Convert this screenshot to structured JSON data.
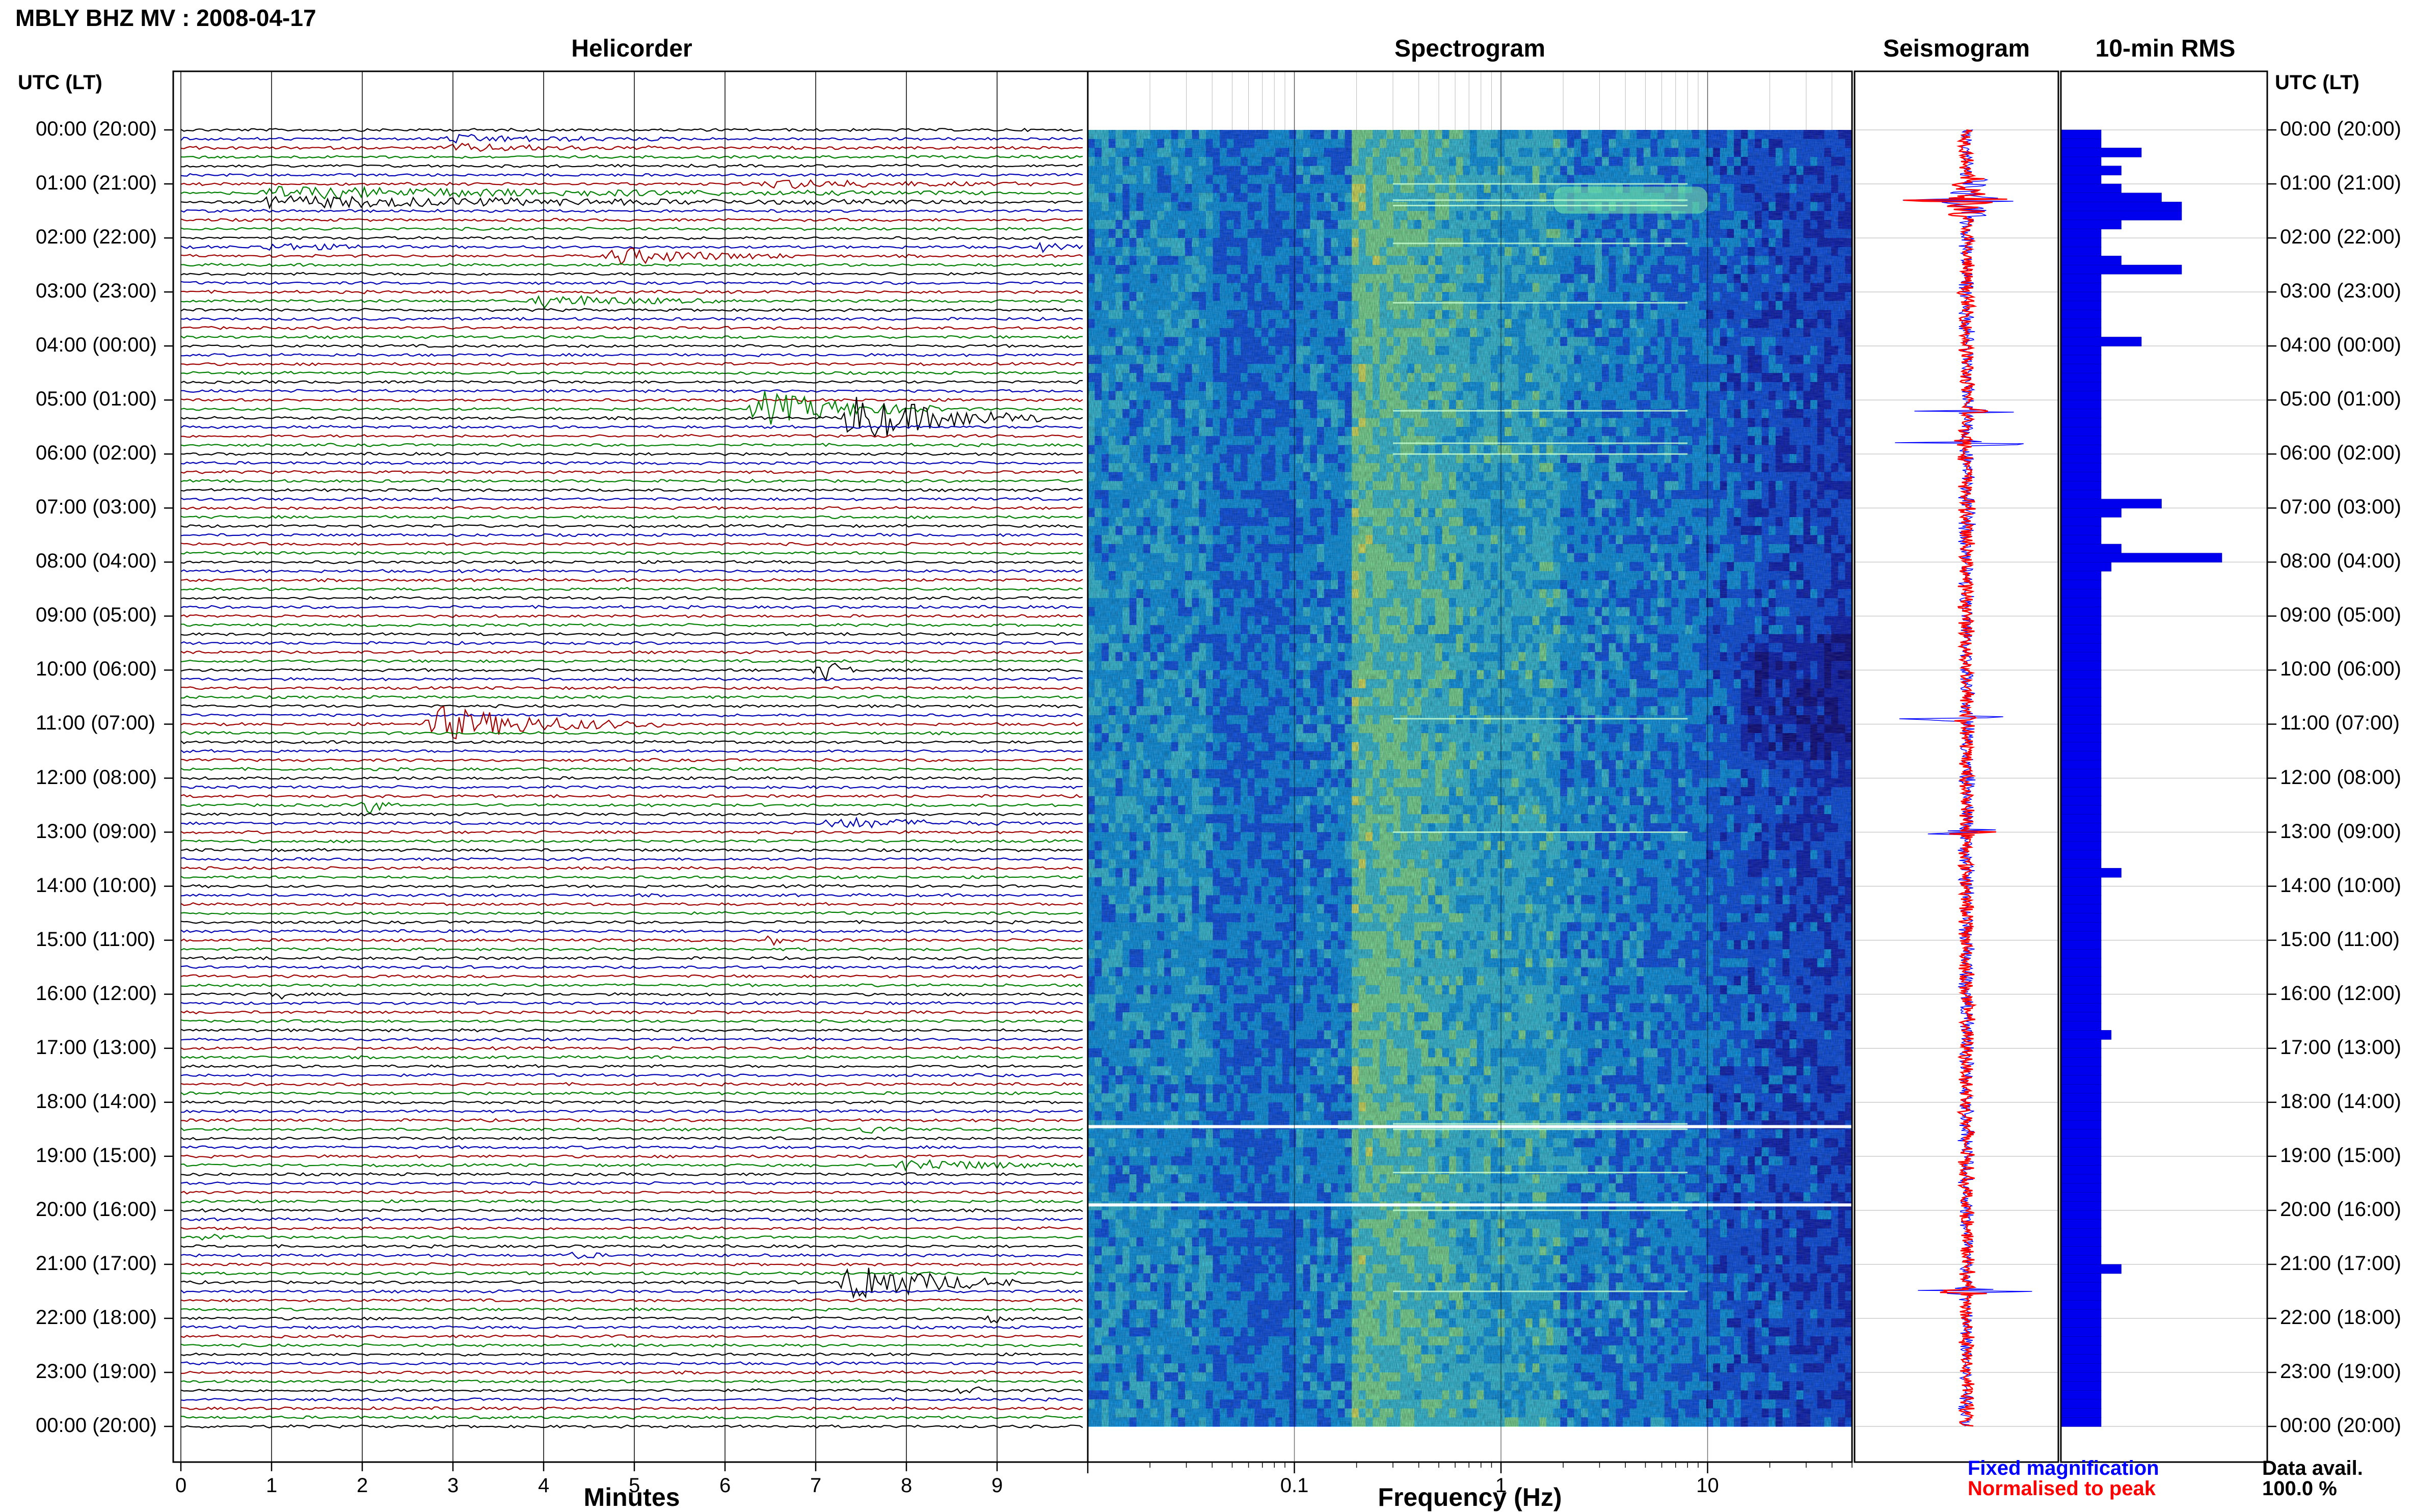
{
  "title": "MBLY BHZ MV : 2008-04-17",
  "colors": {
    "trace_cycle": [
      "#000000",
      "#0000b4",
      "#a00000",
      "#008000"
    ],
    "fixed": "#0000ff",
    "normalised": "#ff0000",
    "rms_bar": "#0000ee"
  },
  "time_axis": {
    "left_header": "UTC (LT)",
    "right_header": "UTC (LT)",
    "labels": [
      "00:00 (20:00)",
      "01:00 (21:00)",
      "02:00 (22:00)",
      "03:00 (23:00)",
      "04:00 (00:00)",
      "05:00 (01:00)",
      "06:00 (02:00)",
      "07:00 (03:00)",
      "08:00 (04:00)",
      "09:00 (05:00)",
      "10:00 (06:00)",
      "11:00 (07:00)",
      "12:00 (08:00)",
      "13:00 (09:00)",
      "14:00 (10:00)",
      "15:00 (11:00)",
      "16:00 (12:00)",
      "17:00 (13:00)",
      "18:00 (14:00)",
      "19:00 (15:00)",
      "20:00 (16:00)",
      "21:00 (17:00)",
      "22:00 (18:00)",
      "23:00 (19:00)",
      "00:00 (20:00)"
    ]
  },
  "chart_data": [
    {
      "type": "line",
      "title": "Helicorder",
      "xlabel": "Minutes",
      "xlim": [
        0,
        10
      ],
      "xticks": [
        "0",
        "1",
        "2",
        "3",
        "4",
        "5",
        "6",
        "7",
        "8",
        "9"
      ],
      "rows_per_hour": 6,
      "n_rows": 144,
      "events": [
        {
          "hour": 0.25,
          "minute": 3.0,
          "amp": 0.5,
          "dur": 2.5
        },
        {
          "hour": 1.25,
          "minute": 1.0,
          "amp": 0.8,
          "dur": 8.0
        },
        {
          "hour": 1.0,
          "minute": 6.5,
          "amp": 0.6,
          "dur": 3.0
        },
        {
          "hour": 2.2,
          "minute": 1.0,
          "amp": 0.5,
          "dur": 1.5
        },
        {
          "hour": 2.3,
          "minute": 4.8,
          "amp": 1.2,
          "dur": 2.0
        },
        {
          "hour": 2.2,
          "minute": 9.5,
          "amp": 0.5,
          "dur": 0.5
        },
        {
          "hour": 3.1,
          "minute": 4.0,
          "amp": 0.9,
          "dur": 2.0
        },
        {
          "hour": 5.1,
          "minute": 6.4,
          "amp": 2.5,
          "dur": 2.0
        },
        {
          "hour": 5.4,
          "minute": 7.4,
          "amp": 3.5,
          "dur": 2.2
        },
        {
          "hour": 10.0,
          "minute": 7.1,
          "amp": 1.5,
          "dur": 0.4
        },
        {
          "hour": 11.0,
          "minute": 2.8,
          "amp": 2.5,
          "dur": 2.5
        },
        {
          "hour": 12.5,
          "minute": 2.1,
          "amp": 1.2,
          "dur": 0.3
        },
        {
          "hour": 12.8,
          "minute": 7.2,
          "amp": 0.8,
          "dur": 2.0
        },
        {
          "hour": 15.0,
          "minute": 6.5,
          "amp": 0.8,
          "dur": 0.2
        },
        {
          "hour": 16.0,
          "minute": 1.1,
          "amp": 0.6,
          "dur": 0.2
        },
        {
          "hour": 18.5,
          "minute": 7.6,
          "amp": 0.7,
          "dur": 0.3
        },
        {
          "hour": 19.2,
          "minute": 8.0,
          "amp": 0.9,
          "dur": 2.0
        },
        {
          "hour": 20.5,
          "minute": 0.3,
          "amp": 0.6,
          "dur": 0.3
        },
        {
          "hour": 20.9,
          "minute": 4.4,
          "amp": 0.6,
          "dur": 0.3
        },
        {
          "hour": 21.3,
          "minute": 7.4,
          "amp": 3.2,
          "dur": 1.8
        },
        {
          "hour": 22.0,
          "minute": 9.0,
          "amp": 0.7,
          "dur": 0.2
        },
        {
          "hour": 23.3,
          "minute": 8.7,
          "amp": 0.9,
          "dur": 0.3
        }
      ]
    },
    {
      "type": "heatmap",
      "title": "Spectrogram",
      "xlabel": "Frequency (Hz)",
      "xscale": "log",
      "xlim": [
        0.01,
        50
      ],
      "xticks": [
        {
          "value": 0.1,
          "label": "0.1"
        },
        {
          "value": 1,
          "label": "1"
        },
        {
          "value": 10,
          "label": "10"
        }
      ],
      "colormap": [
        "#00008c",
        "#0018c8",
        "#0050ff",
        "#00a0ff",
        "#30d0f0",
        "#7ff0a0",
        "#e8f860"
      ],
      "bright_lines_hours": [
        1.0,
        1.3,
        1.4,
        2.1,
        3.2,
        5.2,
        5.8,
        6.0,
        10.9,
        13.0,
        18.4,
        18.5,
        19.3,
        19.9,
        20.0,
        21.5
      ],
      "gap_lines_hours": [
        18.45,
        19.9
      ]
    },
    {
      "type": "line",
      "title": "Seismogram",
      "series": [
        {
          "name": "Fixed magnification"
        },
        {
          "name": "Normalised to peak"
        }
      ],
      "legend": "bottom-right",
      "spikes_hours": [
        1.3,
        5.2,
        5.8,
        10.9,
        13.0,
        21.5
      ]
    },
    {
      "type": "bar",
      "title": "10-min RMS",
      "orientation": "horizontal",
      "xlim": [
        0,
        1
      ],
      "values": [
        0.2,
        0.2,
        0.4,
        0.2,
        0.3,
        0.2,
        0.3,
        0.5,
        0.6,
        0.6,
        0.3,
        0.2,
        0.2,
        0.2,
        0.3,
        0.6,
        0.2,
        0.2,
        0.2,
        0.2,
        0.2,
        0.2,
        0.2,
        0.4,
        0.2,
        0.2,
        0.2,
        0.2,
        0.2,
        0.2,
        0.2,
        0.2,
        0.2,
        0.2,
        0.2,
        0.2,
        0.2,
        0.2,
        0.2,
        0.2,
        0.2,
        0.5,
        0.3,
        0.2,
        0.2,
        0.2,
        0.3,
        0.8,
        0.25,
        0.2,
        0.2,
        0.2,
        0.2,
        0.2,
        0.2,
        0.2,
        0.2,
        0.2,
        0.2,
        0.2,
        0.2,
        0.2,
        0.2,
        0.2,
        0.2,
        0.2,
        0.2,
        0.2,
        0.2,
        0.2,
        0.2,
        0.2,
        0.2,
        0.2,
        0.2,
        0.2,
        0.2,
        0.2,
        0.2,
        0.2,
        0.2,
        0.2,
        0.3,
        0.2,
        0.2,
        0.2,
        0.2,
        0.2,
        0.2,
        0.2,
        0.2,
        0.2,
        0.2,
        0.2,
        0.2,
        0.2,
        0.2,
        0.2,
        0.2,
        0.2,
        0.25,
        0.2,
        0.2,
        0.2,
        0.2,
        0.2,
        0.2,
        0.2,
        0.2,
        0.2,
        0.2,
        0.2,
        0.2,
        0.2,
        0.2,
        0.2,
        0.2,
        0.2,
        0.2,
        0.2,
        0.2,
        0.2,
        0.2,
        0.2,
        0.2,
        0.2,
        0.3,
        0.2,
        0.2,
        0.2,
        0.2,
        0.2,
        0.2,
        0.2,
        0.2,
        0.2,
        0.2,
        0.2,
        0.2,
        0.2,
        0.2,
        0.2,
        0.2,
        0.2
      ]
    }
  ],
  "footer": {
    "legend_fixed": "Fixed magnification",
    "legend_normalised": "Normalised to peak",
    "data_avail_label": "Data avail.",
    "data_avail_value": "100.0 %"
  }
}
